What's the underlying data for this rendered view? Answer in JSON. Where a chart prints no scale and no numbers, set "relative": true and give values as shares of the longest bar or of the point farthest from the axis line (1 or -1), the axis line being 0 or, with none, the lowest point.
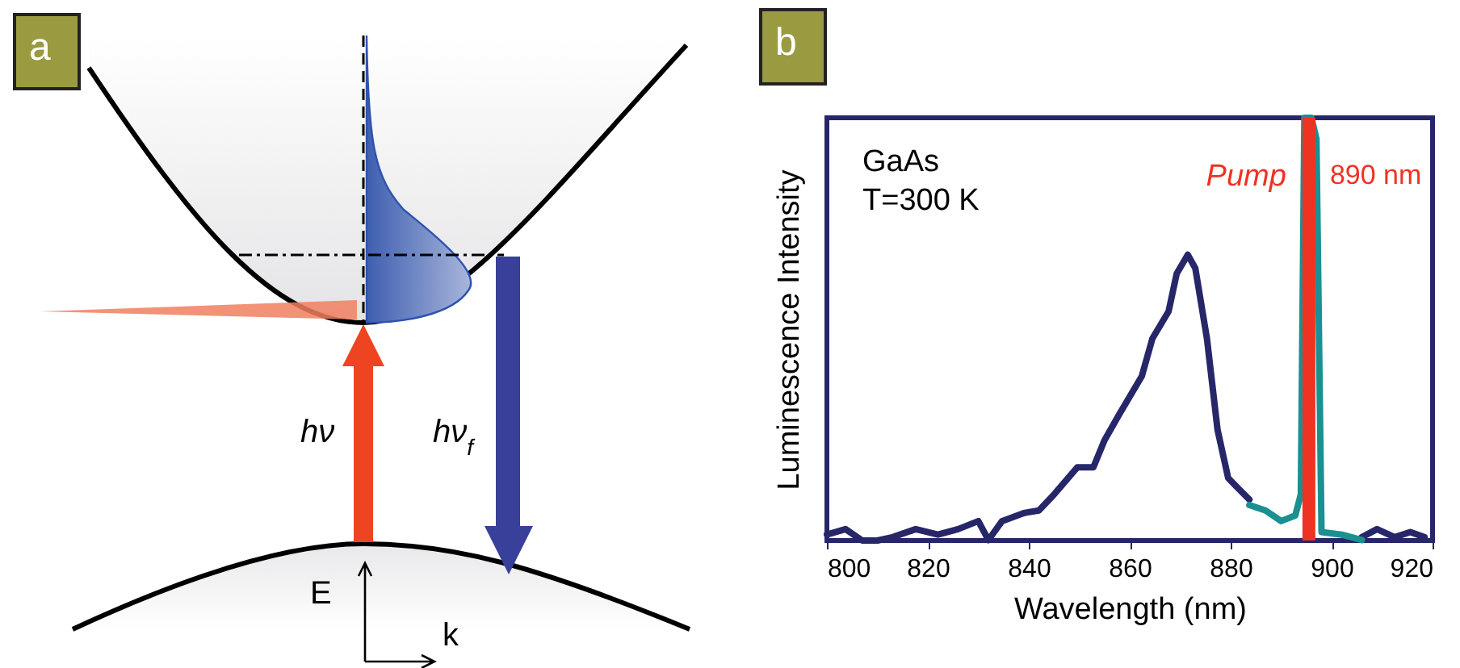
{
  "chart_data": [
    {
      "type": "other",
      "title": "a",
      "annotations": [
        "hν",
        "hν$_{f}$",
        "E",
        "k"
      ]
    },
    {
      "type": "line",
      "title": "b",
      "xlabel": "Wavelength (nm)",
      "ylabel": "Luminescence Intensity",
      "relative": true,
      "xlim": [
        800,
        920
      ],
      "xticks": [
        800,
        820,
        840,
        860,
        880,
        900,
        920
      ],
      "grid": false,
      "legend": false,
      "series": [
        {
          "color": "#262669",
          "x": [
            800,
            803.7,
            807,
            810,
            813,
            817.6,
            822,
            826,
            830,
            832,
            834.7,
            839,
            842,
            845,
            849.6,
            852.8,
            855,
            858,
            862.4,
            864.5,
            867.7,
            869.3,
            871.5,
            873,
            875.3,
            877.4,
            879.5,
            881.6,
            883.7,
            null,
            906,
            909,
            912.5,
            915.6,
            918.4
          ],
          "values": [
            0.014,
            0.027,
            0,
            0,
            0.008,
            0.027,
            0.014,
            0.027,
            0.046,
            0.001,
            0.046,
            0.065,
            0.071,
            0.109,
            0.173,
            0.173,
            0.237,
            0.3,
            0.389,
            0.478,
            0.542,
            0.631,
            0.676,
            0.644,
            0.478,
            0.262,
            0.148,
            0.122,
            0.097,
            null,
            0.008,
            0.027,
            0.008,
            0.02,
            0.008
          ]
        },
        {
          "color": "#1a9090",
          "x": [
            883.7,
            886.9,
            890,
            892.8,
            893.9,
            894.6,
            896,
            897,
            898,
            902,
            906
          ],
          "values": [
            0.084,
            0.071,
            0.046,
            0.059,
            0.109,
            1,
            1,
            0.95,
            0.02,
            0.014,
            0.001
          ]
        }
      ],
      "ref_lines": [
        {
          "axis": "x",
          "value": 895.5,
          "color": "#ee3322"
        }
      ],
      "annotations": [
        "GaAs",
        "T=300 K",
        "Pump",
        "890 nm"
      ]
    }
  ]
}
